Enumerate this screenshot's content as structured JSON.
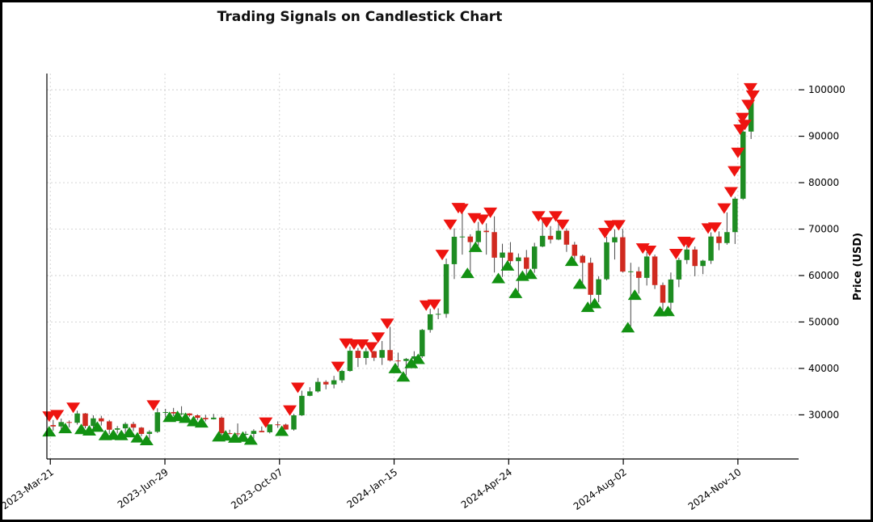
{
  "chart_data": {
    "type": "candlestick",
    "title": "Trading Signals on Candlestick Chart",
    "ylabel": "Price (USD)",
    "grid": true,
    "legend": "none",
    "y_ticks": [
      30000,
      40000,
      50000,
      60000,
      70000,
      80000,
      90000,
      100000
    ],
    "y_domain": [
      20500,
      103500
    ],
    "x_domain": [
      "2023-03-18",
      "2025-01-02"
    ],
    "x_ticks": [
      {
        "date": "2023-03-21",
        "label": "2023-Mar-21"
      },
      {
        "date": "2023-06-29",
        "label": "2023-Jun-29"
      },
      {
        "date": "2023-10-07",
        "label": "2023-Oct-07"
      },
      {
        "date": "2024-01-15",
        "label": "2024-Jan-15"
      },
      {
        "date": "2024-04-24",
        "label": "2024-Apr-24"
      },
      {
        "date": "2024-08-02",
        "label": "2024-Aug-02"
      },
      {
        "date": "2024-11-10",
        "label": "2024-Nov-10"
      }
    ],
    "colors": {
      "up": "#1e8c22",
      "down": "#d02a20",
      "buy_marker": "#129112",
      "sell_marker": "#ee1410",
      "grid": "#cfcfcf"
    },
    "ohlc_format": [
      "date",
      "open",
      "high",
      "low",
      "close"
    ],
    "ohlc": [
      [
        "2023-03-20",
        27800,
        28900,
        26600,
        27500
      ],
      [
        "2023-03-27",
        27500,
        29200,
        26800,
        28450
      ],
      [
        "2023-04-03",
        28450,
        28800,
        27300,
        28300
      ],
      [
        "2023-04-10",
        28300,
        30900,
        27900,
        30300
      ],
      [
        "2023-04-17",
        30300,
        30400,
        27100,
        27600
      ],
      [
        "2023-04-24",
        27600,
        29900,
        26900,
        29250
      ],
      [
        "2023-05-01",
        29250,
        29800,
        27700,
        28600
      ],
      [
        "2023-05-08",
        28600,
        28900,
        25900,
        26800
      ],
      [
        "2023-05-15",
        26800,
        27600,
        26000,
        27100
      ],
      [
        "2023-05-22",
        27100,
        28400,
        25900,
        28050
      ],
      [
        "2023-05-29",
        28050,
        28500,
        26500,
        27250
      ],
      [
        "2023-06-05",
        27250,
        27400,
        25400,
        25900
      ],
      [
        "2023-06-12",
        25900,
        26700,
        24800,
        26350
      ],
      [
        "2023-06-19",
        26350,
        31400,
        26100,
        30550
      ],
      [
        "2023-06-26",
        30550,
        31300,
        29500,
        30600
      ],
      [
        "2023-07-03",
        30600,
        31500,
        29750,
        30300
      ],
      [
        "2023-07-10",
        30300,
        31850,
        29950,
        30300
      ],
      [
        "2023-07-17",
        30300,
        30350,
        29600,
        29900
      ],
      [
        "2023-07-24",
        29900,
        30100,
        28900,
        29350
      ],
      [
        "2023-07-31",
        29350,
        30000,
        28600,
        29050
      ],
      [
        "2023-08-07",
        29050,
        30200,
        29000,
        29400
      ],
      [
        "2023-08-14",
        29400,
        29650,
        25600,
        26050
      ],
      [
        "2023-08-21",
        26050,
        26800,
        25800,
        26000
      ],
      [
        "2023-08-28",
        26000,
        28150,
        25350,
        25900
      ],
      [
        "2023-09-04",
        25900,
        26450,
        25550,
        25900
      ],
      [
        "2023-09-11",
        25900,
        26900,
        24900,
        26550
      ],
      [
        "2023-09-18",
        26550,
        27500,
        26300,
        26250
      ],
      [
        "2023-09-25",
        26250,
        27100,
        26000,
        27950
      ],
      [
        "2023-10-02",
        27950,
        28600,
        27200,
        27900
      ],
      [
        "2023-10-09",
        27900,
        28100,
        26800,
        26850
      ],
      [
        "2023-10-16",
        26850,
        30200,
        26600,
        29900
      ],
      [
        "2023-10-23",
        29900,
        35200,
        29750,
        34100
      ],
      [
        "2023-10-30",
        34100,
        35950,
        34000,
        35050
      ],
      [
        "2023-11-06",
        35050,
        37950,
        34800,
        37100
      ],
      [
        "2023-11-13",
        37100,
        37450,
        35500,
        36550
      ],
      [
        "2023-11-20",
        36550,
        38400,
        35700,
        37450
      ],
      [
        "2023-11-27",
        37450,
        39700,
        36900,
        39450
      ],
      [
        "2023-12-04",
        39450,
        44700,
        39300,
        43800
      ],
      [
        "2023-12-11",
        43800,
        44400,
        40300,
        42250
      ],
      [
        "2023-12-18",
        42250,
        44400,
        40800,
        43700
      ],
      [
        "2023-12-25",
        43700,
        43800,
        41600,
        42300
      ],
      [
        "2024-01-01",
        42300,
        45900,
        40750,
        43950
      ],
      [
        "2024-01-08",
        43950,
        48950,
        41500,
        41700
      ],
      [
        "2024-01-15",
        41700,
        43400,
        40300,
        41600
      ],
      [
        "2024-01-22",
        41600,
        42250,
        38500,
        42050
      ],
      [
        "2024-01-29",
        42050,
        43700,
        41400,
        42600
      ],
      [
        "2024-02-05",
        42600,
        48500,
        42250,
        48300
      ],
      [
        "2024-02-12",
        48300,
        52850,
        47700,
        51650
      ],
      [
        "2024-02-19",
        51650,
        52950,
        50600,
        51750
      ],
      [
        "2024-02-26",
        51750,
        63650,
        50900,
        62450
      ],
      [
        "2024-03-04",
        62450,
        70150,
        59250,
        68350
      ],
      [
        "2024-03-11",
        68350,
        73750,
        64500,
        68400
      ],
      [
        "2024-03-18",
        68400,
        68900,
        60800,
        67200
      ],
      [
        "2024-03-25",
        67200,
        71550,
        66400,
        69650
      ],
      [
        "2024-04-01",
        69650,
        71250,
        64500,
        69350
      ],
      [
        "2024-04-08",
        69350,
        72750,
        60650,
        63850
      ],
      [
        "2024-04-15",
        63850,
        66850,
        59700,
        64950
      ],
      [
        "2024-04-22",
        64950,
        67200,
        62400,
        63100
      ],
      [
        "2024-04-29",
        63100,
        64750,
        56550,
        63900
      ],
      [
        "2024-05-06",
        63900,
        65500,
        60200,
        61450
      ],
      [
        "2024-05-13",
        61450,
        67050,
        60600,
        66250
      ],
      [
        "2024-05-20",
        66250,
        71950,
        66100,
        68550
      ],
      [
        "2024-05-27",
        68550,
        70650,
        66900,
        67750
      ],
      [
        "2024-06-03",
        67750,
        71950,
        67600,
        69650
      ],
      [
        "2024-06-10",
        69650,
        70150,
        65100,
        66650
      ],
      [
        "2024-06-17",
        66650,
        67250,
        63350,
        64250
      ],
      [
        "2024-06-24",
        64250,
        64500,
        58450,
        62750
      ],
      [
        "2024-07-01",
        62750,
        63850,
        53500,
        55850
      ],
      [
        "2024-07-08",
        55850,
        59850,
        54250,
        59200
      ],
      [
        "2024-07-15",
        59200,
        68350,
        58950,
        67150
      ],
      [
        "2024-07-22",
        67150,
        69950,
        63450,
        68250
      ],
      [
        "2024-07-29",
        68250,
        70050,
        60650,
        60850
      ],
      [
        "2024-08-05",
        60850,
        62750,
        49050,
        60900
      ],
      [
        "2024-08-12",
        60900,
        61850,
        56100,
        59500
      ],
      [
        "2024-08-19",
        59500,
        65050,
        57850,
        64100
      ],
      [
        "2024-08-26",
        64100,
        64500,
        57100,
        57950
      ],
      [
        "2024-09-02",
        57950,
        58500,
        52550,
        54150
      ],
      [
        "2024-09-09",
        54150,
        60650,
        52600,
        59150
      ],
      [
        "2024-09-16",
        59150,
        63850,
        57500,
        63350
      ],
      [
        "2024-09-23",
        63350,
        66450,
        62500,
        65600
      ],
      [
        "2024-09-30",
        65600,
        66250,
        59850,
        62050
      ],
      [
        "2024-10-07",
        62050,
        63400,
        60300,
        63200
      ],
      [
        "2024-10-14",
        63200,
        69300,
        62500,
        68400
      ],
      [
        "2024-10-21",
        68400,
        69500,
        65450,
        67000
      ],
      [
        "2024-10-28",
        67000,
        73600,
        66650,
        69350
      ],
      [
        "2024-11-04",
        69350,
        76950,
        66800,
        76550
      ],
      [
        "2024-11-11",
        76550,
        93450,
        76300,
        91000
      ],
      [
        "2024-11-18",
        91000,
        99650,
        89400,
        97700
      ]
    ],
    "signals": {
      "signal_format": [
        "date",
        "price"
      ],
      "sell": [
        [
          "2023-03-20",
          29700
        ],
        [
          "2023-03-27",
          30000
        ],
        [
          "2023-04-10",
          31600
        ],
        [
          "2023-06-19",
          32100
        ],
        [
          "2023-09-25",
          28400
        ],
        [
          "2023-10-16",
          31000
        ],
        [
          "2023-10-23",
          35900
        ],
        [
          "2023-11-27",
          40400
        ],
        [
          "2023-12-04",
          45400
        ],
        [
          "2023-12-11",
          45200
        ],
        [
          "2023-12-18",
          45200
        ],
        [
          "2023-12-26",
          44600
        ],
        [
          "2024-01-01",
          46700
        ],
        [
          "2024-01-09",
          49700
        ],
        [
          "2024-02-12",
          53600
        ],
        [
          "2024-02-19",
          53800
        ],
        [
          "2024-02-26",
          64500
        ],
        [
          "2024-03-04",
          71000
        ],
        [
          "2024-03-11",
          74600
        ],
        [
          "2024-03-14",
          74400
        ],
        [
          "2024-03-25",
          72400
        ],
        [
          "2024-04-01",
          72100
        ],
        [
          "2024-04-08",
          73600
        ],
        [
          "2024-05-20",
          72800
        ],
        [
          "2024-05-27",
          71500
        ],
        [
          "2024-06-04",
          72800
        ],
        [
          "2024-06-10",
          71000
        ],
        [
          "2024-07-17",
          69200
        ],
        [
          "2024-07-22",
          70800
        ],
        [
          "2024-07-29",
          70900
        ],
        [
          "2024-08-19",
          65900
        ],
        [
          "2024-08-25",
          65400
        ],
        [
          "2024-09-17",
          64700
        ],
        [
          "2024-09-24",
          67300
        ],
        [
          "2024-09-28",
          67100
        ],
        [
          "2024-10-15",
          70200
        ],
        [
          "2024-10-21",
          70400
        ],
        [
          "2024-10-29",
          74500
        ],
        [
          "2024-11-04",
          78000
        ],
        [
          "2024-11-07",
          82500
        ],
        [
          "2024-11-10",
          86500
        ],
        [
          "2024-11-12",
          91500
        ],
        [
          "2024-11-14",
          94000
        ],
        [
          "2024-11-16",
          92500
        ],
        [
          "2024-11-19",
          96800
        ],
        [
          "2024-11-21",
          100400
        ],
        [
          "2024-11-23",
          98800
        ]
      ],
      "buy": [
        [
          "2023-03-20",
          26400
        ],
        [
          "2023-04-03",
          27100
        ],
        [
          "2023-04-17",
          26900
        ],
        [
          "2023-04-24",
          26600
        ],
        [
          "2023-05-01",
          27400
        ],
        [
          "2023-05-08",
          25600
        ],
        [
          "2023-05-15",
          25700
        ],
        [
          "2023-05-22",
          25600
        ],
        [
          "2023-05-29",
          26200
        ],
        [
          "2023-06-05",
          25100
        ],
        [
          "2023-06-13",
          24500
        ],
        [
          "2023-07-03",
          29500
        ],
        [
          "2023-07-10",
          29700
        ],
        [
          "2023-07-17",
          29300
        ],
        [
          "2023-07-24",
          28600
        ],
        [
          "2023-07-31",
          28300
        ],
        [
          "2023-08-15",
          25300
        ],
        [
          "2023-08-21",
          25500
        ],
        [
          "2023-08-29",
          25050
        ],
        [
          "2023-09-05",
          25250
        ],
        [
          "2023-09-12",
          24600
        ],
        [
          "2023-10-09",
          26500
        ],
        [
          "2024-01-16",
          40000
        ],
        [
          "2024-01-23",
          38200
        ],
        [
          "2024-01-30",
          41100
        ],
        [
          "2024-02-05",
          42000
        ],
        [
          "2024-03-19",
          60500
        ],
        [
          "2024-03-26",
          66100
        ],
        [
          "2024-04-15",
          59400
        ],
        [
          "2024-04-23",
          62100
        ],
        [
          "2024-04-30",
          56200
        ],
        [
          "2024-05-06",
          59900
        ],
        [
          "2024-05-13",
          60300
        ],
        [
          "2024-06-18",
          63100
        ],
        [
          "2024-06-25",
          58200
        ],
        [
          "2024-07-02",
          53200
        ],
        [
          "2024-07-08",
          54000
        ],
        [
          "2024-08-06",
          48800
        ],
        [
          "2024-08-12",
          55800
        ],
        [
          "2024-09-03",
          52250
        ],
        [
          "2024-09-10",
          52300
        ]
      ]
    }
  }
}
